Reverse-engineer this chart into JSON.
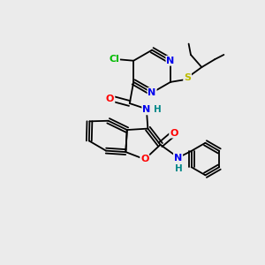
{
  "bg_color": "#ebebeb",
  "atom_colors": {
    "C": "#000000",
    "N": "#0000ee",
    "O": "#ff0000",
    "S": "#bbbb00",
    "Cl": "#00bb00",
    "H": "#008888"
  },
  "bond_color": "#000000",
  "figsize": [
    3.0,
    3.0
  ],
  "dpi": 100
}
